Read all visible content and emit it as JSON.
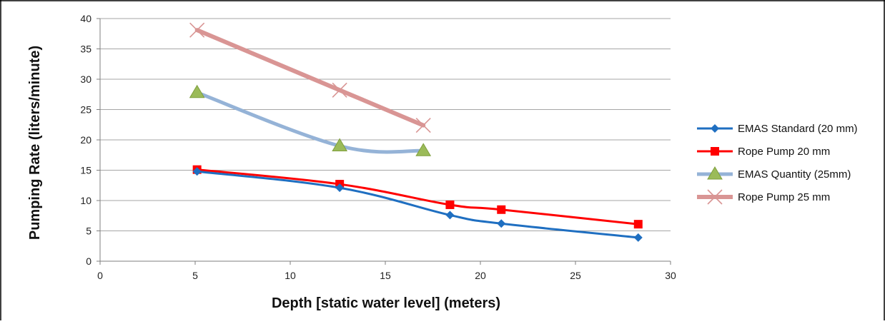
{
  "chart_data": {
    "type": "line",
    "title": "",
    "xlabel": "Depth [static water level] (meters)",
    "ylabel": "Pumping Rate (liters/minute)",
    "xlim": [
      0,
      30
    ],
    "ylim": [
      0,
      40
    ],
    "xticks": [
      0,
      5,
      10,
      15,
      20,
      25,
      30
    ],
    "yticks": [
      0,
      5,
      10,
      15,
      20,
      25,
      30,
      35,
      40
    ],
    "grid": "horizontal",
    "legend_position": "right",
    "series": [
      {
        "name": "EMAS Standard (20 mm)",
        "color": "#1F6FC1",
        "marker": "diamond",
        "points": [
          [
            5.1,
            14.8
          ],
          [
            12.6,
            12.1
          ],
          [
            18.4,
            7.6
          ],
          [
            21.1,
            6.2
          ],
          [
            28.3,
            3.9
          ]
        ]
      },
      {
        "name": "Rope Pump 20 mm",
        "color": "#FF0000",
        "marker": "square",
        "points": [
          [
            5.1,
            15.1
          ],
          [
            12.6,
            12.7
          ],
          [
            18.4,
            9.3
          ],
          [
            21.1,
            8.5
          ],
          [
            28.3,
            6.1
          ]
        ]
      },
      {
        "name": "EMAS Quantity (25mm)",
        "color": "#95B3D7",
        "marker": "triangle",
        "points": [
          [
            5.1,
            27.8
          ],
          [
            12.6,
            19.0
          ],
          [
            17.0,
            18.2
          ]
        ]
      },
      {
        "name": "Rope Pump 25 mm",
        "color": "#D99594",
        "marker": "x",
        "points": [
          [
            5.1,
            38.1
          ],
          [
            12.6,
            28.2
          ],
          [
            17.0,
            22.4
          ]
        ]
      }
    ]
  }
}
